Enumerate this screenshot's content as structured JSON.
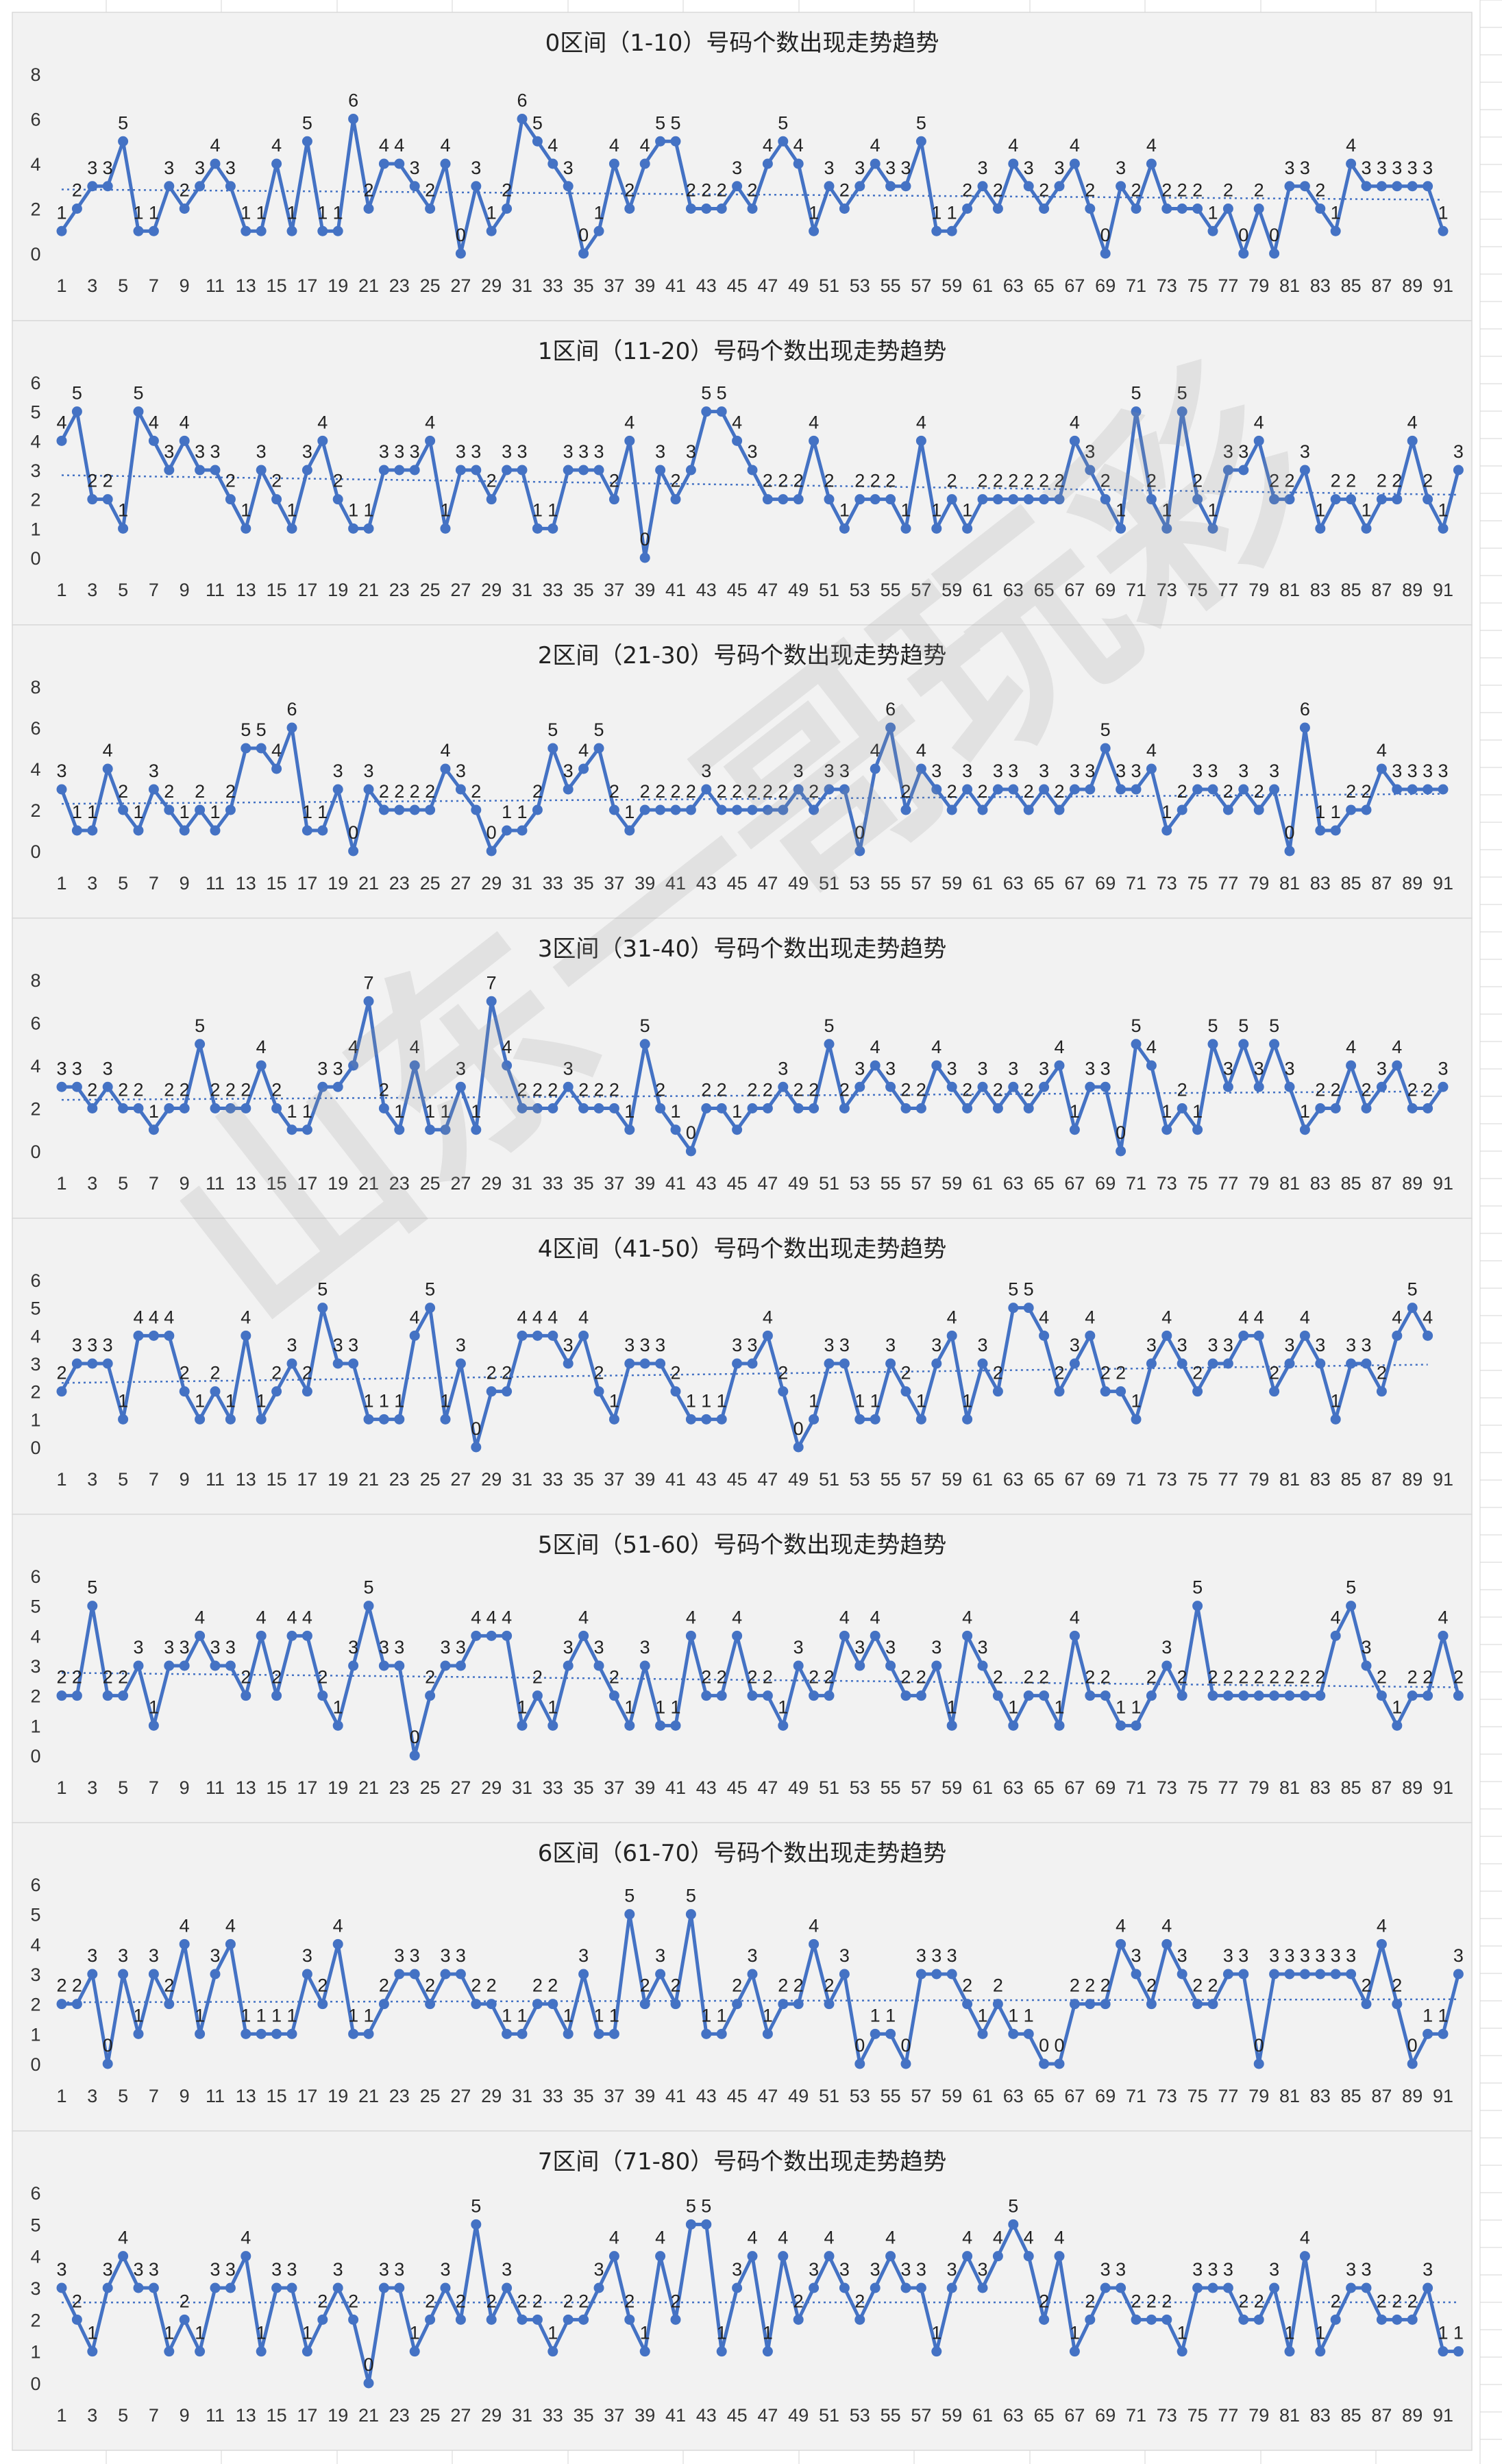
{
  "watermark": "山东一哥玩彩",
  "chart_data": [
    {
      "type": "line",
      "title": "0区间（1-10）号码个数出现走势趋势",
      "ylim": [
        0,
        8
      ],
      "yticks": [
        0,
        2,
        4,
        6,
        8
      ],
      "xticks": [
        1,
        3,
        5,
        7,
        9,
        11,
        13,
        15,
        17,
        19,
        21,
        23,
        25,
        27,
        29,
        31,
        33,
        35,
        37,
        39,
        41,
        43,
        45,
        47,
        49,
        51,
        53,
        55,
        57,
        59,
        61,
        63,
        65,
        67,
        69,
        71,
        73,
        75,
        77,
        79,
        81,
        83,
        85,
        87,
        89,
        91
      ],
      "trendline": "linear",
      "values": [
        1,
        2,
        3,
        3,
        5,
        1,
        1,
        3,
        2,
        3,
        4,
        3,
        1,
        1,
        4,
        1,
        5,
        1,
        1,
        6,
        2,
        4,
        4,
        3,
        2,
        4,
        0,
        3,
        1,
        2,
        6,
        5,
        4,
        3,
        0,
        1,
        4,
        2,
        4,
        5,
        5,
        2,
        2,
        2,
        3,
        2,
        4,
        5,
        4,
        1,
        3,
        2,
        3,
        4,
        3,
        3,
        5,
        1,
        1,
        2,
        3,
        2,
        4,
        3,
        2,
        3,
        4,
        2,
        0,
        3,
        2,
        4,
        2,
        2,
        2,
        1,
        2,
        0,
        2,
        0,
        3,
        3,
        2,
        1,
        4,
        3,
        3,
        3,
        3,
        3,
        1
      ]
    },
    {
      "type": "line",
      "title": "1区间（11-20）号码个数出现走势趋势",
      "ylim": [
        0,
        6
      ],
      "yticks": [
        0,
        1,
        2,
        3,
        4,
        5,
        6
      ],
      "xticks": [
        1,
        3,
        5,
        7,
        9,
        11,
        13,
        15,
        17,
        19,
        21,
        23,
        25,
        27,
        29,
        31,
        33,
        35,
        37,
        39,
        41,
        43,
        45,
        47,
        49,
        51,
        53,
        55,
        57,
        59,
        61,
        63,
        65,
        67,
        69,
        71,
        73,
        75,
        77,
        79,
        81,
        83,
        85,
        87,
        89,
        91
      ],
      "trendline": "linear",
      "values": [
        4,
        5,
        2,
        2,
        1,
        5,
        4,
        3,
        4,
        3,
        3,
        2,
        1,
        3,
        2,
        1,
        3,
        4,
        2,
        1,
        1,
        3,
        3,
        3,
        4,
        1,
        3,
        3,
        2,
        3,
        3,
        1,
        1,
        3,
        3,
        3,
        2,
        4,
        0,
        3,
        2,
        3,
        5,
        5,
        4,
        3,
        2,
        2,
        2,
        4,
        2,
        1,
        2,
        2,
        2,
        1,
        4,
        1,
        2,
        1,
        2,
        2,
        2,
        2,
        2,
        2,
        4,
        3,
        2,
        1,
        5,
        2,
        1,
        5,
        2,
        1,
        3,
        3,
        4,
        2,
        2,
        3,
        1,
        2,
        2,
        1,
        2,
        2,
        4,
        2,
        1,
        3
      ]
    },
    {
      "type": "line",
      "title": "2区间（21-30）号码个数出现走势趋势",
      "ylim": [
        0,
        8
      ],
      "yticks": [
        0,
        2,
        4,
        6,
        8
      ],
      "xticks": [
        1,
        3,
        5,
        7,
        9,
        11,
        13,
        15,
        17,
        19,
        21,
        23,
        25,
        27,
        29,
        31,
        33,
        35,
        37,
        39,
        41,
        43,
        45,
        47,
        49,
        51,
        53,
        55,
        57,
        59,
        61,
        63,
        65,
        67,
        69,
        71,
        73,
        75,
        77,
        79,
        81,
        83,
        85,
        87,
        89,
        91
      ],
      "trendline": "linear",
      "values": [
        3,
        1,
        1,
        4,
        2,
        1,
        3,
        2,
        1,
        2,
        1,
        2,
        5,
        5,
        4,
        6,
        1,
        1,
        3,
        0,
        3,
        2,
        2,
        2,
        2,
        4,
        3,
        2,
        0,
        1,
        1,
        2,
        5,
        3,
        4,
        5,
        2,
        1,
        2,
        2,
        2,
        2,
        3,
        2,
        2,
        2,
        2,
        2,
        3,
        2,
        3,
        3,
        0,
        4,
        6,
        2,
        4,
        3,
        2,
        3,
        2,
        3,
        3,
        2,
        3,
        2,
        3,
        3,
        5,
        3,
        3,
        4,
        1,
        2,
        3,
        3,
        2,
        3,
        2,
        3,
        0,
        6,
        1,
        1,
        2,
        2,
        4,
        3,
        3,
        3,
        3
      ]
    },
    {
      "type": "line",
      "title": "3区间（31-40）号码个数出现走势趋势",
      "ylim": [
        0,
        8
      ],
      "yticks": [
        0,
        2,
        4,
        6,
        8
      ],
      "xticks": [
        1,
        3,
        5,
        7,
        9,
        11,
        13,
        15,
        17,
        19,
        21,
        23,
        25,
        27,
        29,
        31,
        33,
        35,
        37,
        39,
        41,
        43,
        45,
        47,
        49,
        51,
        53,
        55,
        57,
        59,
        61,
        63,
        65,
        67,
        69,
        71,
        73,
        75,
        77,
        79,
        81,
        83,
        85,
        87,
        89,
        91
      ],
      "trendline": "linear",
      "values": [
        3,
        3,
        2,
        3,
        2,
        2,
        1,
        2,
        2,
        5,
        2,
        2,
        2,
        4,
        2,
        1,
        1,
        3,
        3,
        4,
        7,
        2,
        1,
        4,
        1,
        1,
        3,
        1,
        7,
        4,
        2,
        2,
        2,
        3,
        2,
        2,
        2,
        1,
        5,
        2,
        1,
        0,
        2,
        2,
        1,
        2,
        2,
        3,
        2,
        2,
        5,
        2,
        3,
        4,
        3,
        2,
        2,
        4,
        3,
        2,
        3,
        2,
        3,
        2,
        3,
        4,
        1,
        3,
        3,
        0,
        5,
        4,
        1,
        2,
        1,
        5,
        3,
        5,
        3,
        5,
        3,
        1,
        2,
        2,
        4,
        2,
        3,
        4,
        2,
        2,
        3
      ]
    },
    {
      "type": "line",
      "title": "4区间（41-50）号码个数出现走势趋势",
      "ylim": [
        0,
        6
      ],
      "yticks": [
        0,
        1,
        2,
        3,
        4,
        5,
        6
      ],
      "xticks": [
        1,
        3,
        5,
        7,
        9,
        11,
        13,
        15,
        17,
        19,
        21,
        23,
        25,
        27,
        29,
        31,
        33,
        35,
        37,
        39,
        41,
        43,
        45,
        47,
        49,
        51,
        53,
        55,
        57,
        59,
        61,
        63,
        65,
        67,
        69,
        71,
        73,
        75,
        77,
        79,
        81,
        83,
        85,
        87,
        89,
        91
      ],
      "trendline": "linear",
      "values": [
        2,
        3,
        3,
        3,
        1,
        4,
        4,
        4,
        2,
        1,
        2,
        1,
        4,
        1,
        2,
        3,
        2,
        5,
        3,
        3,
        1,
        1,
        1,
        4,
        5,
        1,
        3,
        0,
        2,
        2,
        4,
        4,
        4,
        3,
        4,
        2,
        1,
        3,
        3,
        3,
        2,
        1,
        1,
        1,
        3,
        3,
        4,
        2,
        0,
        1,
        3,
        3,
        1,
        1,
        3,
        2,
        1,
        3,
        4,
        1,
        3,
        2,
        5,
        5,
        4,
        2,
        3,
        4,
        2,
        2,
        1,
        3,
        4,
        3,
        2,
        3,
        3,
        4,
        4,
        2,
        3,
        4,
        3,
        1,
        3,
        3,
        2,
        4,
        5,
        4
      ]
    },
    {
      "type": "line",
      "title": "5区间（51-60）号码个数出现走势趋势",
      "ylim": [
        0,
        6
      ],
      "yticks": [
        0,
        1,
        2,
        3,
        4,
        5,
        6
      ],
      "xticks": [
        1,
        3,
        5,
        7,
        9,
        11,
        13,
        15,
        17,
        19,
        21,
        23,
        25,
        27,
        29,
        31,
        33,
        35,
        37,
        39,
        41,
        43,
        45,
        47,
        49,
        51,
        53,
        55,
        57,
        59,
        61,
        63,
        65,
        67,
        69,
        71,
        73,
        75,
        77,
        79,
        81,
        83,
        85,
        87,
        89,
        91
      ],
      "trendline": "linear",
      "values": [
        2,
        2,
        5,
        2,
        2,
        3,
        1,
        3,
        3,
        4,
        3,
        3,
        2,
        4,
        2,
        4,
        4,
        2,
        1,
        3,
        5,
        3,
        3,
        0,
        2,
        3,
        3,
        4,
        4,
        4,
        1,
        2,
        1,
        3,
        4,
        3,
        2,
        1,
        3,
        1,
        1,
        4,
        2,
        2,
        4,
        2,
        2,
        1,
        3,
        2,
        2,
        4,
        3,
        4,
        3,
        2,
        2,
        3,
        1,
        4,
        3,
        2,
        1,
        2,
        2,
        1,
        4,
        2,
        2,
        1,
        1,
        2,
        3,
        2,
        5,
        2,
        2,
        2,
        2,
        2,
        2,
        2,
        2,
        4,
        5,
        3,
        2,
        1,
        2,
        2,
        4,
        2
      ]
    },
    {
      "type": "line",
      "title": "6区间（61-70）号码个数出现走势趋势",
      "ylim": [
        0,
        6
      ],
      "yticks": [
        0,
        1,
        2,
        3,
        4,
        5,
        6
      ],
      "xticks": [
        1,
        3,
        5,
        7,
        9,
        11,
        13,
        15,
        17,
        19,
        21,
        23,
        25,
        27,
        29,
        31,
        33,
        35,
        37,
        39,
        41,
        43,
        45,
        47,
        49,
        51,
        53,
        55,
        57,
        59,
        61,
        63,
        65,
        67,
        69,
        71,
        73,
        75,
        77,
        79,
        81,
        83,
        85,
        87,
        89,
        91
      ],
      "trendline": "linear",
      "values": [
        2,
        2,
        3,
        0,
        3,
        1,
        3,
        2,
        4,
        1,
        3,
        4,
        1,
        1,
        1,
        1,
        3,
        2,
        4,
        1,
        1,
        2,
        3,
        3,
        2,
        3,
        3,
        2,
        2,
        1,
        1,
        2,
        2,
        1,
        3,
        1,
        1,
        5,
        2,
        3,
        2,
        5,
        1,
        1,
        2,
        3,
        1,
        2,
        2,
        4,
        2,
        3,
        0,
        1,
        1,
        0,
        3,
        3,
        3,
        2,
        1,
        2,
        1,
        1,
        0,
        0,
        2,
        2,
        2,
        4,
        3,
        2,
        4,
        3,
        2,
        2,
        3,
        3,
        0,
        3,
        3,
        3,
        3,
        3,
        3,
        2,
        4,
        2,
        0,
        1,
        1,
        3
      ]
    },
    {
      "type": "line",
      "title": "7区间（71-80）号码个数出现走势趋势",
      "ylim": [
        0,
        6
      ],
      "yticks": [
        0,
        1,
        2,
        3,
        4,
        5,
        6
      ],
      "xticks": [
        1,
        3,
        5,
        7,
        9,
        11,
        13,
        15,
        17,
        19,
        21,
        23,
        25,
        27,
        29,
        31,
        33,
        35,
        37,
        39,
        41,
        43,
        45,
        47,
        49,
        51,
        53,
        55,
        57,
        59,
        61,
        63,
        65,
        67,
        69,
        71,
        73,
        75,
        77,
        79,
        81,
        83,
        85,
        87,
        89,
        91
      ],
      "trendline": "linear",
      "values": [
        3,
        2,
        1,
        3,
        4,
        3,
        3,
        1,
        2,
        1,
        3,
        3,
        4,
        1,
        3,
        3,
        1,
        2,
        3,
        2,
        0,
        3,
        3,
        1,
        2,
        3,
        2,
        5,
        2,
        3,
        2,
        2,
        1,
        2,
        2,
        3,
        4,
        2,
        1,
        4,
        2,
        5,
        5,
        1,
        3,
        4,
        1,
        4,
        2,
        3,
        4,
        3,
        2,
        3,
        4,
        3,
        3,
        1,
        3,
        4,
        3,
        4,
        5,
        4,
        2,
        4,
        1,
        2,
        3,
        3,
        2,
        2,
        2,
        1,
        3,
        3,
        3,
        2,
        2,
        3,
        1,
        4,
        1,
        2,
        3,
        3,
        2,
        2,
        2,
        3,
        1,
        1
      ]
    }
  ]
}
